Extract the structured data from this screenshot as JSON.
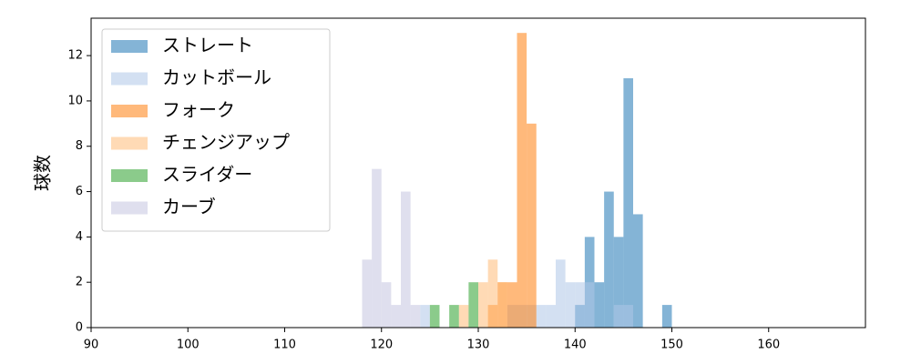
{
  "chart_data": {
    "type": "histogram",
    "ylabel": "球数",
    "bins": [
      118,
      119,
      120,
      121,
      122,
      123,
      124,
      125,
      126,
      127,
      128,
      129,
      130,
      131,
      132,
      133,
      134,
      135,
      136,
      137,
      138,
      139,
      140,
      141,
      142,
      143,
      144,
      145,
      146,
      147,
      148,
      149,
      150
    ],
    "series": [
      {
        "name": "ストレート",
        "color": "#1f77b4",
        "values": [
          0,
          0,
          0,
          0,
          0,
          0,
          0,
          0,
          0,
          0,
          0,
          0,
          0,
          0,
          0,
          0,
          0,
          0,
          0,
          0,
          0,
          0,
          1,
          4,
          2,
          6,
          4,
          11,
          5,
          0,
          0,
          1
        ]
      },
      {
        "name": "カットボール",
        "color": "#aec7e8",
        "values": [
          0,
          0,
          0,
          0,
          0,
          0,
          1,
          0,
          0,
          0,
          0,
          0,
          0,
          0,
          0,
          1,
          1,
          1,
          1,
          1,
          3,
          2,
          2,
          2,
          0,
          0,
          1,
          1,
          0,
          0,
          0,
          0
        ]
      },
      {
        "name": "フォーク",
        "color": "#ff7f0e",
        "values": [
          0,
          0,
          0,
          0,
          0,
          0,
          0,
          0,
          0,
          0,
          0,
          0,
          0,
          1,
          2,
          2,
          13,
          9,
          0,
          0,
          0,
          0,
          0,
          0,
          0,
          0,
          0,
          0,
          0,
          0,
          0,
          0
        ]
      },
      {
        "name": "チェンジアップ",
        "color": "#ffbb78",
        "values": [
          0,
          0,
          0,
          0,
          0,
          0,
          0,
          0,
          0,
          0,
          1,
          0,
          2,
          3,
          2,
          0,
          0,
          0,
          0,
          0,
          0,
          0,
          0,
          0,
          0,
          0,
          0,
          0,
          0,
          0,
          0,
          0
        ]
      },
      {
        "name": "スライダー",
        "color": "#2ca02c",
        "values": [
          0,
          0,
          0,
          0,
          0,
          0,
          0,
          1,
          0,
          1,
          0,
          2,
          0,
          0,
          0,
          0,
          0,
          0,
          0,
          0,
          0,
          0,
          0,
          0,
          0,
          0,
          0,
          0,
          0,
          0,
          0,
          0
        ]
      },
      {
        "name": "カーブ",
        "color": "#c5c5e0",
        "values": [
          3,
          7,
          2,
          1,
          6,
          1,
          0,
          0,
          0,
          0,
          0,
          0,
          0,
          0,
          0,
          0,
          0,
          0,
          0,
          0,
          0,
          0,
          0,
          0,
          0,
          0,
          0,
          0,
          0,
          0,
          0,
          0
        ]
      }
    ],
    "xlim": [
      90,
      170
    ],
    "ylim": [
      0,
      13.65
    ],
    "xticks": [
      90,
      100,
      110,
      120,
      130,
      140,
      150,
      160
    ],
    "yticks": [
      0,
      2,
      4,
      6,
      8,
      10,
      12
    ],
    "legend": "upper left"
  }
}
